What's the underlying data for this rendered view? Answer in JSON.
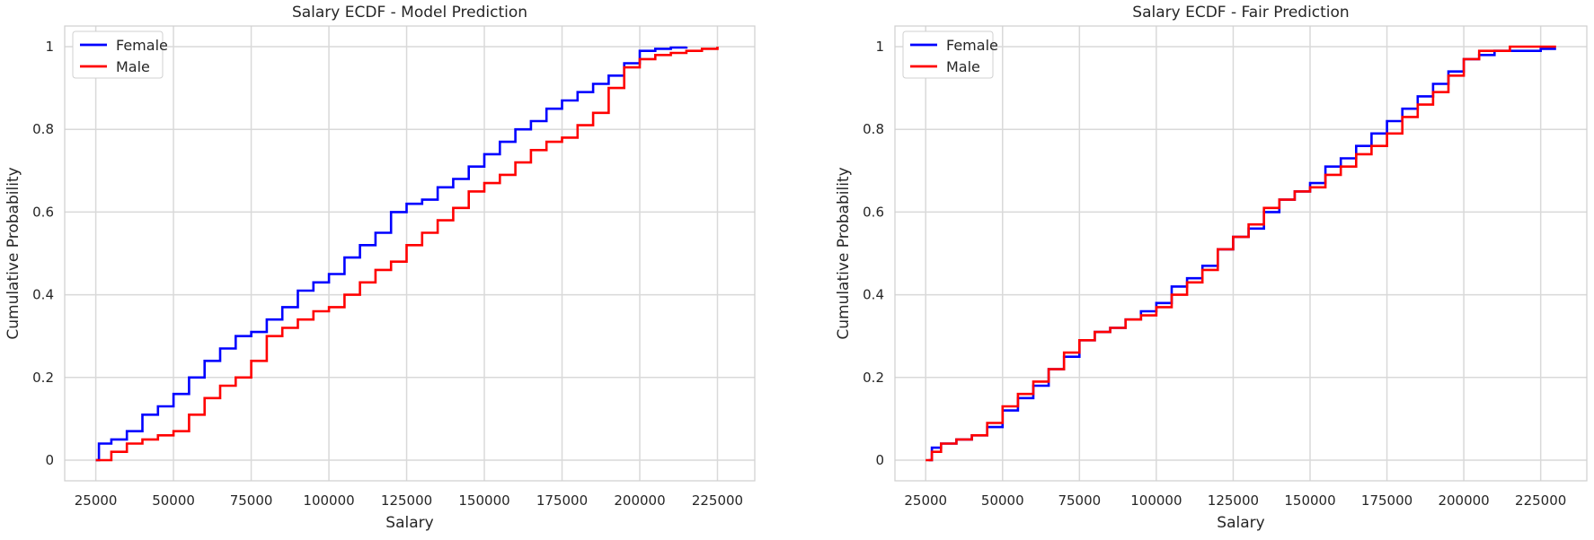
{
  "chart_data": [
    {
      "type": "line",
      "title": "Salary ECDF - Model Prediction",
      "xlabel": "Salary",
      "ylabel": "Cumulative Probability",
      "xlim": [
        15000,
        237000
      ],
      "ylim": [
        -0.05,
        1.05
      ],
      "xticks": [
        25000,
        50000,
        75000,
        100000,
        125000,
        150000,
        175000,
        200000,
        225000
      ],
      "yticks": [
        0.0,
        0.2,
        0.4,
        0.6,
        0.8,
        1.0
      ],
      "grid": true,
      "legend": "top-left",
      "series": [
        {
          "name": "Female",
          "color": "#0000ff",
          "x": [
            25000,
            26000,
            30000,
            35000,
            40000,
            45000,
            50000,
            55000,
            60000,
            65000,
            70000,
            75000,
            80000,
            85000,
            90000,
            95000,
            100000,
            105000,
            110000,
            115000,
            120000,
            125000,
            130000,
            135000,
            140000,
            145000,
            150000,
            155000,
            160000,
            165000,
            170000,
            175000,
            180000,
            185000,
            190000,
            195000,
            200000,
            205000,
            210000,
            215000
          ],
          "y": [
            0.0,
            0.04,
            0.05,
            0.07,
            0.11,
            0.13,
            0.16,
            0.2,
            0.24,
            0.27,
            0.3,
            0.31,
            0.34,
            0.37,
            0.41,
            0.43,
            0.45,
            0.49,
            0.52,
            0.55,
            0.6,
            0.62,
            0.63,
            0.66,
            0.68,
            0.71,
            0.74,
            0.77,
            0.8,
            0.82,
            0.85,
            0.87,
            0.89,
            0.91,
            0.93,
            0.96,
            0.99,
            0.995,
            0.998,
            1.0
          ]
        },
        {
          "name": "Male",
          "color": "#ff0000",
          "x": [
            25000,
            30000,
            35000,
            40000,
            45000,
            50000,
            55000,
            60000,
            65000,
            70000,
            75000,
            80000,
            85000,
            90000,
            95000,
            100000,
            105000,
            110000,
            115000,
            120000,
            125000,
            130000,
            135000,
            140000,
            145000,
            150000,
            155000,
            160000,
            165000,
            170000,
            175000,
            180000,
            185000,
            190000,
            195000,
            200000,
            205000,
            210000,
            215000,
            220000,
            225000
          ],
          "y": [
            0.0,
            0.02,
            0.04,
            0.05,
            0.06,
            0.07,
            0.11,
            0.15,
            0.18,
            0.2,
            0.24,
            0.3,
            0.32,
            0.34,
            0.36,
            0.37,
            0.4,
            0.43,
            0.46,
            0.48,
            0.52,
            0.55,
            0.58,
            0.61,
            0.65,
            0.67,
            0.69,
            0.72,
            0.75,
            0.77,
            0.78,
            0.81,
            0.84,
            0.9,
            0.95,
            0.97,
            0.98,
            0.985,
            0.99,
            0.995,
            1.0
          ]
        }
      ]
    },
    {
      "type": "line",
      "title": "Salary ECDF - Fair Prediction",
      "xlabel": "Salary",
      "ylabel": "Cumulative Probability",
      "xlim": [
        15000,
        240000
      ],
      "ylim": [
        -0.05,
        1.05
      ],
      "xticks": [
        25000,
        50000,
        75000,
        100000,
        125000,
        150000,
        175000,
        200000,
        225000
      ],
      "yticks": [
        0.0,
        0.2,
        0.4,
        0.6,
        0.8,
        1.0
      ],
      "grid": true,
      "legend": "top-left",
      "series": [
        {
          "name": "Female",
          "color": "#0000ff",
          "x": [
            26000,
            27000,
            30000,
            35000,
            40000,
            45000,
            50000,
            55000,
            60000,
            65000,
            70000,
            75000,
            80000,
            85000,
            90000,
            95000,
            100000,
            105000,
            110000,
            115000,
            120000,
            125000,
            130000,
            135000,
            140000,
            145000,
            150000,
            155000,
            160000,
            165000,
            170000,
            175000,
            180000,
            185000,
            190000,
            195000,
            200000,
            205000,
            210000,
            215000,
            220000,
            225000,
            230000
          ],
          "y": [
            0.0,
            0.03,
            0.04,
            0.05,
            0.06,
            0.08,
            0.12,
            0.15,
            0.18,
            0.22,
            0.25,
            0.29,
            0.31,
            0.32,
            0.34,
            0.36,
            0.38,
            0.42,
            0.44,
            0.47,
            0.51,
            0.54,
            0.56,
            0.6,
            0.63,
            0.65,
            0.67,
            0.71,
            0.73,
            0.76,
            0.79,
            0.82,
            0.85,
            0.88,
            0.91,
            0.94,
            0.97,
            0.98,
            0.99,
            0.99,
            0.99,
            0.995,
            0.995
          ]
        },
        {
          "name": "Male",
          "color": "#ff0000",
          "x": [
            25000,
            27000,
            30000,
            35000,
            40000,
            45000,
            50000,
            55000,
            60000,
            65000,
            70000,
            75000,
            80000,
            85000,
            90000,
            95000,
            100000,
            105000,
            110000,
            115000,
            120000,
            125000,
            130000,
            135000,
            140000,
            145000,
            150000,
            155000,
            160000,
            165000,
            170000,
            175000,
            180000,
            185000,
            190000,
            195000,
            200000,
            205000,
            210000,
            215000,
            220000,
            225000,
            230000
          ],
          "y": [
            0.0,
            0.02,
            0.04,
            0.05,
            0.06,
            0.09,
            0.13,
            0.16,
            0.19,
            0.22,
            0.26,
            0.29,
            0.31,
            0.32,
            0.34,
            0.35,
            0.37,
            0.4,
            0.43,
            0.46,
            0.51,
            0.54,
            0.57,
            0.61,
            0.63,
            0.65,
            0.66,
            0.69,
            0.71,
            0.74,
            0.76,
            0.79,
            0.83,
            0.86,
            0.89,
            0.93,
            0.97,
            0.99,
            0.99,
            1.0,
            1.0,
            1.0,
            1.0
          ]
        }
      ]
    }
  ]
}
